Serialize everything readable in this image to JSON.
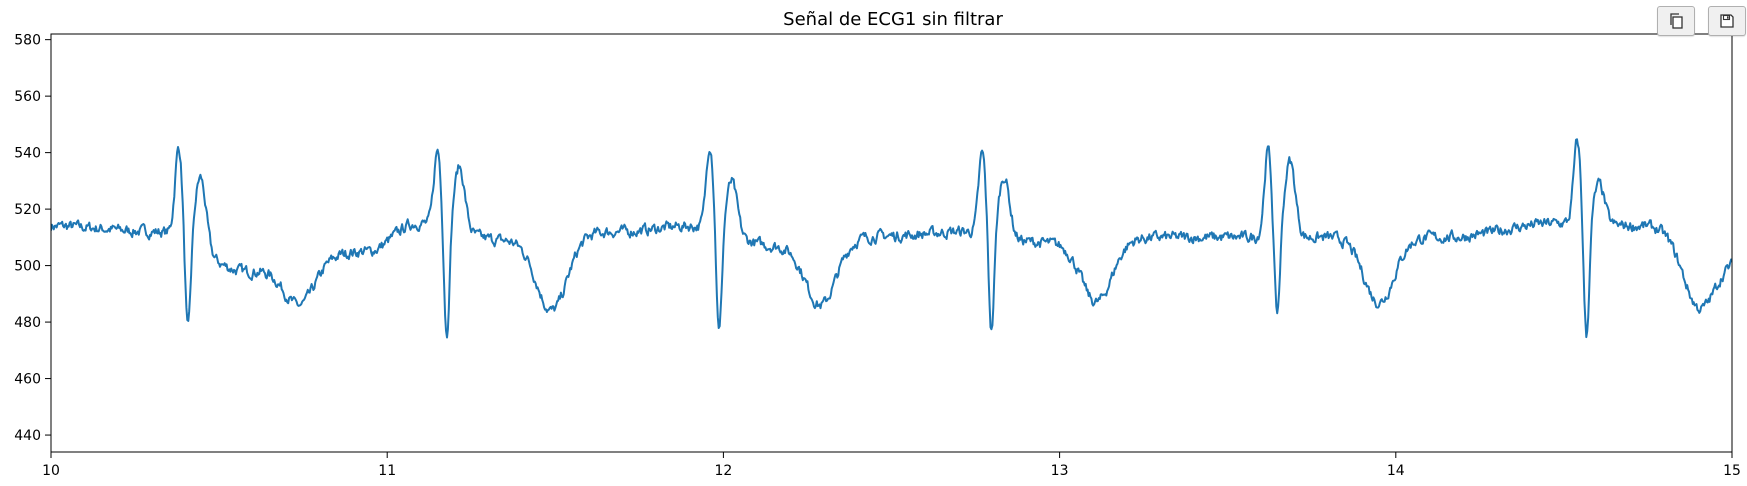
{
  "toolbar": {
    "copy_icon": "copy-icon",
    "save_icon": "floppy-disk-icon"
  },
  "chart_data": {
    "type": "line",
    "title": "Señal de ECG1 sin filtrar",
    "xlabel": "",
    "ylabel": "",
    "xlim": [
      10,
      15
    ],
    "ylim": [
      434,
      582
    ],
    "x_ticks": [
      "10",
      "11",
      "12",
      "13",
      "14",
      "15"
    ],
    "y_ticks": [
      "440",
      "460",
      "480",
      "500",
      "520",
      "540",
      "560",
      "580"
    ],
    "grid": false,
    "legend": "none",
    "line_color": "#1f77b4",
    "series": [
      {
        "beats": [
          {
            "r_time": 10.38,
            "r_peak": 542,
            "s_trough": 476,
            "t_peak": 536,
            "baseline_before": 512,
            "baseline_after": 498,
            "dip_time": 10.74,
            "dip_value": 486
          },
          {
            "r_time": 11.15,
            "r_peak": 541,
            "s_trough": 474,
            "t_peak": 537,
            "baseline_before": 515,
            "baseline_after": 509,
            "dip_time": 11.49,
            "dip_value": 484
          },
          {
            "r_time": 11.96,
            "r_peak": 543,
            "s_trough": 475,
            "t_peak": 532,
            "baseline_before": 514,
            "baseline_after": 507,
            "dip_time": 12.29,
            "dip_value": 486
          },
          {
            "r_time": 12.77,
            "r_peak": 540,
            "s_trough": 475,
            "t_peak": 533,
            "baseline_before": 512,
            "baseline_after": 508,
            "dip_time": 13.11,
            "dip_value": 487
          },
          {
            "r_time": 13.62,
            "r_peak": 541,
            "s_trough": 480,
            "t_peak": 537,
            "baseline_before": 510,
            "baseline_after": 510,
            "dip_time": 13.95,
            "dip_value": 487
          },
          {
            "r_time": 14.54,
            "r_peak": 544,
            "s_trough": 473,
            "t_peak": 529,
            "baseline_before": 515,
            "baseline_after": 514,
            "dip_time": 14.9,
            "dip_value": 485
          }
        ],
        "start_value": 514,
        "end_value": 502
      }
    ]
  }
}
